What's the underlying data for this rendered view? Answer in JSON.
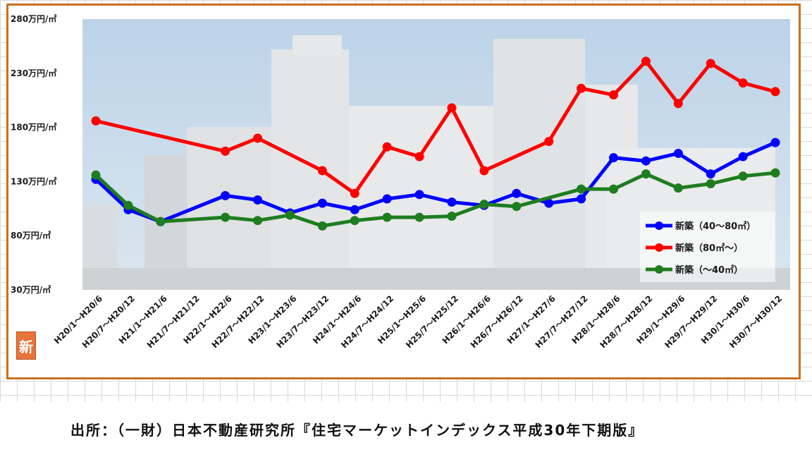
{
  "chart_data": {
    "type": "line",
    "categories": [
      "H20/1～H20/6",
      "H20/7～H20/12",
      "H21/1～H21/6",
      "H21/7～H21/12",
      "H22/1～H22/6",
      "H22/7～H22/12",
      "H23/1～H23/6",
      "H23/7～H23/12",
      "H24/1～H24/6",
      "H24/7～H24/12",
      "H25/1～H25/6",
      "H25/7～H25/12",
      "H26/1～H26/6",
      "H26/7～H26/12",
      "H27/1～H27/6",
      "H27/7～H27/12",
      "H28/1～H28/6",
      "H28/7～H28/12",
      "H29/1～H29/6",
      "H29/7～H29/12",
      "H30/1～H30/6",
      "H30/7～H30/12"
    ],
    "yticks": [
      30,
      80,
      130,
      180,
      230,
      280
    ],
    "ytick_labels": [
      "30万円/㎡",
      "80万円/㎡",
      "130万円/㎡",
      "180万円/㎡",
      "230万円/㎡",
      "280万円/㎡"
    ],
    "ylim": [
      30,
      280
    ],
    "grid": false,
    "legend_position": "right",
    "series": [
      {
        "name": "新築（40～80㎡）",
        "color": "#0000ff",
        "values": [
          132,
          104,
          93,
          null,
          117,
          113,
          101,
          110,
          104,
          114,
          118,
          111,
          108,
          119,
          110,
          114,
          152,
          149,
          156,
          137,
          153,
          166
        ]
      },
      {
        "name": "新築（80㎡～）",
        "color": "#ff0000",
        "values": [
          186,
          null,
          null,
          null,
          158,
          170,
          null,
          140,
          119,
          162,
          153,
          198,
          140,
          null,
          167,
          216,
          210,
          241,
          202,
          239,
          221,
          213
        ]
      },
      {
        "name": "新築（～40㎡）",
        "color": "#1e7d1e",
        "values": [
          136,
          108,
          93,
          null,
          97,
          94,
          99,
          89,
          94,
          97,
          97,
          98,
          109,
          107,
          null,
          123,
          123,
          137,
          124,
          128,
          135,
          138
        ]
      }
    ]
  },
  "badge": "新",
  "source_text": "出所：（一財）日本不動産研究所『住宅マーケットインデックス平成30年下期版』"
}
